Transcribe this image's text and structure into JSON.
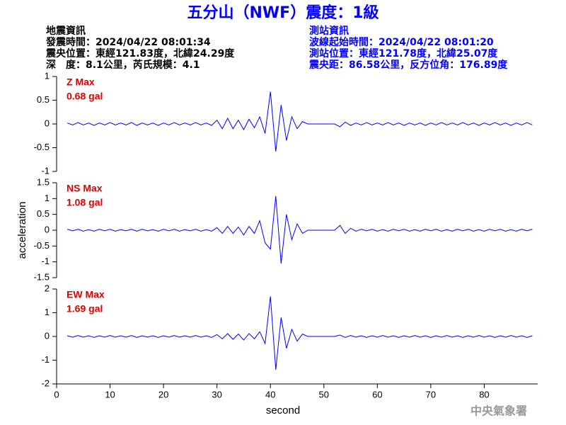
{
  "header": {
    "title": "五分山（NWF）震度：1級",
    "left": [
      "地震資訊",
      "發震時間：2024/04/22 08:01:34",
      "震央位置：東經121.83度，北緯24.29度",
      "深　度：8.1公里，芮氏規模：4.1"
    ],
    "right": [
      "測站資訊",
      "波線起始時間：2024/04/22 08:01:20",
      "測站位置：東經121.78度，北緯25.07度",
      "震央距：86.58公里，反方位角：176.89度"
    ],
    "footer": "中央氣象署"
  },
  "chart_data": [
    {
      "type": "line",
      "color": "#0000ff",
      "annotation": [
        "Z Max",
        "0.68 gal"
      ],
      "xlim": [
        0,
        90
      ],
      "ylim": [
        -1,
        1
      ],
      "yticks": [
        1,
        0.5,
        0,
        -0.5,
        -1
      ],
      "x": [
        2,
        3,
        4,
        5,
        6,
        7,
        8,
        9,
        10,
        11,
        12,
        13,
        14,
        15,
        16,
        17,
        18,
        19,
        20,
        21,
        22,
        23,
        24,
        25,
        26,
        27,
        28,
        29,
        30,
        31,
        32,
        33,
        34,
        35,
        36,
        37,
        38,
        39,
        40,
        41,
        42,
        43,
        44,
        45,
        46,
        47,
        48,
        49,
        50,
        51,
        52,
        53,
        54,
        55,
        56,
        57,
        58,
        59,
        60,
        61,
        62,
        63,
        64,
        65,
        66,
        67,
        68,
        69,
        70,
        71,
        72,
        73,
        74,
        75,
        76,
        77,
        78,
        79,
        80,
        81,
        82,
        83,
        84,
        85,
        86,
        87,
        88,
        89
      ],
      "values": [
        0.02,
        -0.02,
        0.03,
        -0.02,
        0.02,
        -0.03,
        0.02,
        -0.02,
        0.03,
        -0.02,
        0.02,
        -0.02,
        0.03,
        -0.03,
        0.02,
        -0.02,
        0.02,
        -0.03,
        0.02,
        -0.02,
        0.03,
        -0.02,
        0.02,
        -0.02,
        0.03,
        -0.02,
        0.02,
        -0.03,
        0.08,
        -0.1,
        0.12,
        -0.1,
        0.08,
        -0.12,
        0.1,
        -0.08,
        0.15,
        -0.2,
        0.68,
        -0.58,
        0.4,
        -0.35,
        0.15,
        -0.1,
        0.05,
        0,
        0,
        0,
        0,
        0,
        0,
        -0.06,
        0.04,
        -0.03,
        0.02,
        -0.02,
        0.03,
        -0.02,
        0.02,
        -0.02,
        0.03,
        -0.02,
        0.02,
        -0.03,
        0.02,
        -0.02,
        0.02,
        -0.03,
        0.02,
        -0.02,
        0.03,
        -0.02,
        0.02,
        -0.02,
        0.03,
        -0.02,
        0.02,
        -0.03,
        0.02,
        -0.02,
        0.03,
        -0.02,
        0.02,
        -0.03,
        0.02,
        -0.02,
        0.03,
        -0.02
      ]
    },
    {
      "type": "line",
      "color": "#0000ff",
      "annotation": [
        "NS Max",
        "1.08 gal"
      ],
      "ylabel": "acceleration",
      "xlim": [
        0,
        90
      ],
      "ylim": [
        -1.5,
        1.5
      ],
      "yticks": [
        1.5,
        1,
        0.5,
        0,
        -0.5,
        -1,
        -1.5
      ],
      "x": [
        2,
        3,
        4,
        5,
        6,
        7,
        8,
        9,
        10,
        11,
        12,
        13,
        14,
        15,
        16,
        17,
        18,
        19,
        20,
        21,
        22,
        23,
        24,
        25,
        26,
        27,
        28,
        29,
        30,
        31,
        32,
        33,
        34,
        35,
        36,
        37,
        38,
        39,
        40,
        41,
        42,
        43,
        44,
        45,
        46,
        47,
        48,
        49,
        50,
        51,
        52,
        53,
        54,
        55,
        56,
        57,
        58,
        59,
        60,
        61,
        62,
        63,
        64,
        65,
        66,
        67,
        68,
        69,
        70,
        71,
        72,
        73,
        74,
        75,
        76,
        77,
        78,
        79,
        80,
        81,
        82,
        83,
        84,
        85,
        86,
        87,
        88,
        89
      ],
      "values": [
        0.03,
        -0.02,
        0.03,
        -0.03,
        0.02,
        -0.03,
        0.03,
        -0.02,
        0.03,
        -0.03,
        0.02,
        -0.02,
        0.03,
        -0.03,
        0.03,
        -0.02,
        0.02,
        -0.03,
        0.03,
        -0.02,
        0.03,
        -0.03,
        0.02,
        -0.02,
        0.03,
        -0.03,
        0.02,
        -0.03,
        0.08,
        -0.1,
        0.12,
        -0.1,
        0.1,
        -0.15,
        0.12,
        -0.1,
        0.3,
        -0.4,
        -0.6,
        1.08,
        -1.05,
        0.5,
        -0.3,
        0.2,
        -0.1,
        0,
        0,
        0,
        0,
        0,
        0,
        0.15,
        -0.1,
        0.06,
        -0.03,
        0.03,
        -0.02,
        0.03,
        -0.03,
        0.02,
        -0.03,
        0.03,
        -0.02,
        0.03,
        -0.03,
        0.02,
        -0.03,
        0.03,
        -0.02,
        0.03,
        -0.03,
        0.02,
        -0.03,
        0.03,
        -0.02,
        0.03,
        -0.03,
        0.02,
        -0.03,
        0.03,
        -0.02,
        0.03,
        -0.03,
        0.02,
        -0.03,
        0.03,
        -0.02,
        0.03
      ]
    },
    {
      "type": "line",
      "color": "#0000ff",
      "annotation": [
        "EW Max",
        "1.69 gal"
      ],
      "xlabel": "second",
      "xlim": [
        0,
        90
      ],
      "xticks": [
        0,
        10,
        20,
        30,
        40,
        50,
        60,
        70,
        80
      ],
      "ylim": [
        -2,
        2
      ],
      "yticks": [
        2,
        1,
        0,
        -1,
        -2
      ],
      "x": [
        2,
        3,
        4,
        5,
        6,
        7,
        8,
        9,
        10,
        11,
        12,
        13,
        14,
        15,
        16,
        17,
        18,
        19,
        20,
        21,
        22,
        23,
        24,
        25,
        26,
        27,
        28,
        29,
        30,
        31,
        32,
        33,
        34,
        35,
        36,
        37,
        38,
        39,
        40,
        41,
        42,
        43,
        44,
        45,
        46,
        47,
        48,
        49,
        50,
        51,
        52,
        53,
        54,
        55,
        56,
        57,
        58,
        59,
        60,
        61,
        62,
        63,
        64,
        65,
        66,
        67,
        68,
        69,
        70,
        71,
        72,
        73,
        74,
        75,
        76,
        77,
        78,
        79,
        80,
        81,
        82,
        83,
        84,
        85,
        86,
        87,
        88,
        89
      ],
      "values": [
        0.03,
        -0.03,
        0.04,
        -0.03,
        0.03,
        -0.04,
        0.03,
        -0.03,
        0.04,
        -0.03,
        0.03,
        -0.03,
        0.04,
        -0.04,
        0.03,
        -0.03,
        0.03,
        -0.04,
        0.03,
        -0.03,
        0.04,
        -0.03,
        0.03,
        -0.03,
        0.04,
        -0.03,
        0.03,
        -0.04,
        0.08,
        -0.1,
        0.12,
        -0.12,
        0.1,
        -0.15,
        0.12,
        -0.1,
        0.2,
        -0.3,
        1.69,
        -1.4,
        0.8,
        -0.5,
        0.3,
        -0.2,
        0.1,
        0,
        0,
        0,
        0,
        0,
        0,
        0.06,
        -0.04,
        0.04,
        -0.03,
        0.03,
        -0.04,
        0.03,
        -0.03,
        0.04,
        -0.03,
        0.03,
        -0.04,
        0.03,
        -0.03,
        0.04,
        -0.03,
        0.03,
        -0.04,
        0.03,
        -0.03,
        0.04,
        -0.03,
        0.03,
        -0.04,
        0.03,
        -0.03,
        0.04,
        -0.03,
        0.03,
        -0.04,
        0.03,
        -0.03,
        0.04,
        -0.03,
        0.03,
        -0.04,
        0.03
      ]
    }
  ]
}
